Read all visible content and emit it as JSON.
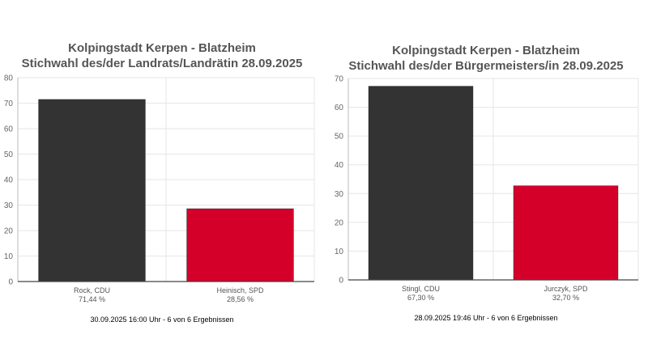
{
  "chart_data": [
    {
      "type": "bar",
      "title": "Kolpingstadt Kerpen - Blatzheim",
      "subtitle": "Stichwahl des/der Landrats/Landrätin 28.09.2025",
      "categories": [
        "Rock, CDU",
        "Heinisch, SPD"
      ],
      "data_labels": [
        "71,44 %",
        "28,56 %"
      ],
      "values": [
        71.44,
        28.56
      ],
      "colors": [
        "#333333",
        "#d50029"
      ],
      "ylim": [
        0,
        80
      ],
      "yticks": [
        "0",
        "10",
        "20",
        "30",
        "40",
        "50",
        "60",
        "70",
        "80"
      ],
      "grid": true,
      "footer": "30.09.2025 16:00 Uhr - 6 von 6 Ergebnissen"
    },
    {
      "type": "bar",
      "title": "Kolpingstadt Kerpen - Blatzheim",
      "subtitle": "Stichwahl des/der Bürgermeisters/in 28.09.2025",
      "categories": [
        "Stingl, CDU",
        "Jurczyk, SPD"
      ],
      "data_labels": [
        "67,30 %",
        "32,70 %"
      ],
      "values": [
        67.3,
        32.7
      ],
      "colors": [
        "#333333",
        "#d50029"
      ],
      "ylim": [
        0,
        70
      ],
      "yticks": [
        "0",
        "10",
        "20",
        "30",
        "40",
        "50",
        "60",
        "70"
      ],
      "grid": true,
      "footer": "28.09.2025 19:46 Uhr - 6 von 6 Ergebnissen"
    }
  ]
}
